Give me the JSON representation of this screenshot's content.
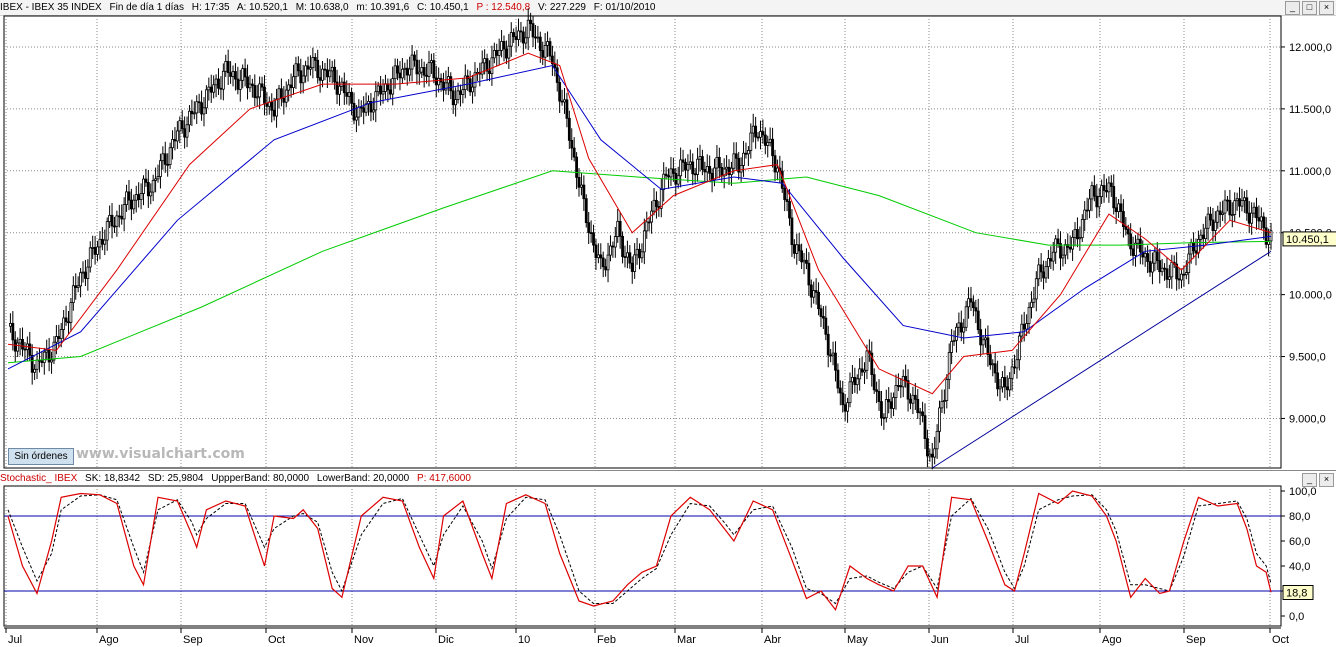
{
  "header": {
    "symbol": "IBEX - IBEX 35 INDEX",
    "period": "Fin de día 1 días",
    "time": "H: 17:35",
    "open": "A: 10.520,1",
    "high": "M: 10.638,0",
    "low": "m: 10.391,6",
    "close": "C: 10.450,1",
    "change": "P : 12.540,8",
    "volume": "V: 227.229",
    "date": "F: 01/10/2010"
  },
  "window_buttons": [
    "_",
    "□",
    "×"
  ],
  "orders_button": "Sin órdenes",
  "watermark": "www.visualchart.com",
  "sub_header": {
    "indicator": "Stochastic_ IBEX",
    "sk": "SK: 18,8342",
    "sd": "SD: 25,9804",
    "upper": "UppperBand: 80,0000",
    "lower": "LowerBand: 20,0000",
    "p": "P: 417,6000"
  },
  "colors": {
    "candle": "#000000",
    "ma_fast": "#dd0000",
    "ma_mid": "#0000cc",
    "ma_slow": "#00cc00",
    "trendline": "#000099",
    "stoch_k": "#dd0000",
    "stoch_d": "#000000",
    "bands": "#0000aa",
    "last_price_bg": "#ffffcc"
  },
  "chart_data": [
    {
      "type": "candlestick",
      "title": "IBEX - IBEX 35 INDEX",
      "x_ticks": [
        "Jul",
        "Ago",
        "Sep",
        "Oct",
        "Nov",
        "Dic",
        "10",
        "Feb",
        "Mar",
        "Abr",
        "May",
        "Jun",
        "Jul",
        "Ago",
        "Sep",
        "Oct"
      ],
      "y_ticks": [
        "9.000,0",
        "9.500,0",
        "10.000,0",
        "10.500,0",
        "11.000,0",
        "11.500,0",
        "12.000,0"
      ],
      "ylim": [
        8600,
        12250
      ],
      "last_price_label": "10.450,1",
      "close_path": [
        [
          0,
          9700
        ],
        [
          5,
          9600
        ],
        [
          12,
          9420
        ],
        [
          20,
          9600
        ],
        [
          30,
          10150
        ],
        [
          40,
          10500
        ],
        [
          50,
          10750
        ],
        [
          60,
          10900
        ],
        [
          70,
          11300
        ],
        [
          80,
          11550
        ],
        [
          90,
          11800
        ],
        [
          100,
          11700
        ],
        [
          110,
          11500
        ],
        [
          118,
          11750
        ],
        [
          125,
          11850
        ],
        [
          135,
          11750
        ],
        [
          145,
          11450
        ],
        [
          155,
          11650
        ],
        [
          165,
          11850
        ],
        [
          175,
          11800
        ],
        [
          185,
          11600
        ],
        [
          195,
          11800
        ],
        [
          205,
          12000
        ],
        [
          215,
          12150
        ],
        [
          225,
          11900
        ],
        [
          232,
          11300
        ],
        [
          238,
          10700
        ],
        [
          245,
          10200
        ],
        [
          252,
          10500
        ],
        [
          258,
          10200
        ],
        [
          265,
          10600
        ],
        [
          272,
          10950
        ],
        [
          282,
          11050
        ],
        [
          292,
          11000
        ],
        [
          302,
          11050
        ],
        [
          310,
          11350
        ],
        [
          318,
          11050
        ],
        [
          325,
          10400
        ],
        [
          330,
          10200
        ],
        [
          338,
          9700
        ],
        [
          345,
          9100
        ],
        [
          355,
          9500
        ],
        [
          362,
          9000
        ],
        [
          368,
          9300
        ],
        [
          375,
          9150
        ],
        [
          382,
          8650
        ],
        [
          390,
          9600
        ],
        [
          398,
          9950
        ],
        [
          405,
          9500
        ],
        [
          412,
          9200
        ],
        [
          418,
          9600
        ],
        [
          425,
          10100
        ],
        [
          432,
          10350
        ],
        [
          440,
          10400
        ],
        [
          448,
          10800
        ],
        [
          456,
          10850
        ],
        [
          463,
          10450
        ],
        [
          470,
          10300
        ],
        [
          478,
          10200
        ],
        [
          485,
          10150
        ],
        [
          492,
          10450
        ],
        [
          500,
          10650
        ],
        [
          508,
          10750
        ],
        [
          515,
          10650
        ],
        [
          522,
          10450
        ]
      ],
      "ma_fast_path": [
        [
          0,
          9600
        ],
        [
          20,
          9550
        ],
        [
          45,
          10200
        ],
        [
          75,
          11050
        ],
        [
          100,
          11500
        ],
        [
          130,
          11700
        ],
        [
          160,
          11700
        ],
        [
          190,
          11750
        ],
        [
          215,
          11950
        ],
        [
          228,
          11850
        ],
        [
          240,
          11100
        ],
        [
          258,
          10500
        ],
        [
          275,
          10800
        ],
        [
          300,
          11000
        ],
        [
          318,
          11050
        ],
        [
          335,
          10200
        ],
        [
          360,
          9400
        ],
        [
          382,
          9200
        ],
        [
          395,
          9500
        ],
        [
          415,
          9550
        ],
        [
          435,
          10000
        ],
        [
          455,
          10650
        ],
        [
          470,
          10450
        ],
        [
          485,
          10200
        ],
        [
          505,
          10600
        ],
        [
          522,
          10500
        ]
      ],
      "ma_mid_path": [
        [
          0,
          9400
        ],
        [
          30,
          9700
        ],
        [
          70,
          10600
        ],
        [
          110,
          11250
        ],
        [
          150,
          11550
        ],
        [
          190,
          11700
        ],
        [
          225,
          11850
        ],
        [
          245,
          11250
        ],
        [
          270,
          10850
        ],
        [
          300,
          10950
        ],
        [
          320,
          10900
        ],
        [
          345,
          10300
        ],
        [
          370,
          9750
        ],
        [
          395,
          9650
        ],
        [
          420,
          9700
        ],
        [
          445,
          10050
        ],
        [
          470,
          10350
        ],
        [
          495,
          10400
        ],
        [
          522,
          10470
        ]
      ],
      "ma_slow_path": [
        [
          0,
          9450
        ],
        [
          30,
          9500
        ],
        [
          80,
          9900
        ],
        [
          130,
          10350
        ],
        [
          180,
          10700
        ],
        [
          225,
          11000
        ],
        [
          260,
          10950
        ],
        [
          300,
          10900
        ],
        [
          330,
          10950
        ],
        [
          360,
          10800
        ],
        [
          400,
          10500
        ],
        [
          430,
          10400
        ],
        [
          460,
          10400
        ],
        [
          490,
          10420
        ],
        [
          522,
          10430
        ]
      ],
      "trendline": [
        [
          382,
          8600
        ],
        [
          522,
          10350
        ]
      ]
    },
    {
      "type": "line",
      "title": "Stochastic_ IBEX",
      "y_ticks": [
        "0,0",
        "20,0",
        "40,0",
        "60,0",
        "80,0",
        "100,0"
      ],
      "ylim": [
        -8,
        104
      ],
      "bands": [
        80,
        20
      ],
      "last_value_label": "18,8",
      "sk_path": [
        [
          0,
          80
        ],
        [
          6,
          40
        ],
        [
          12,
          18
        ],
        [
          18,
          60
        ],
        [
          22,
          95
        ],
        [
          30,
          98
        ],
        [
          38,
          97
        ],
        [
          45,
          90
        ],
        [
          52,
          40
        ],
        [
          56,
          25
        ],
        [
          62,
          95
        ],
        [
          70,
          92
        ],
        [
          76,
          65
        ],
        [
          78,
          55
        ],
        [
          82,
          85
        ],
        [
          90,
          92
        ],
        [
          98,
          88
        ],
        [
          106,
          40
        ],
        [
          110,
          80
        ],
        [
          118,
          78
        ],
        [
          122,
          85
        ],
        [
          128,
          70
        ],
        [
          134,
          22
        ],
        [
          138,
          15
        ],
        [
          146,
          80
        ],
        [
          155,
          95
        ],
        [
          163,
          92
        ],
        [
          170,
          55
        ],
        [
          176,
          30
        ],
        [
          180,
          80
        ],
        [
          188,
          92
        ],
        [
          196,
          50
        ],
        [
          200,
          30
        ],
        [
          206,
          90
        ],
        [
          214,
          97
        ],
        [
          222,
          90
        ],
        [
          228,
          50
        ],
        [
          236,
          12
        ],
        [
          242,
          8
        ],
        [
          250,
          12
        ],
        [
          256,
          25
        ],
        [
          262,
          35
        ],
        [
          268,
          40
        ],
        [
          274,
          80
        ],
        [
          282,
          95
        ],
        [
          290,
          85
        ],
        [
          296,
          70
        ],
        [
          300,
          60
        ],
        [
          308,
          92
        ],
        [
          316,
          85
        ],
        [
          324,
          45
        ],
        [
          330,
          14
        ],
        [
          336,
          20
        ],
        [
          342,
          5
        ],
        [
          348,
          40
        ],
        [
          355,
          30
        ],
        [
          360,
          25
        ],
        [
          366,
          20
        ],
        [
          372,
          40
        ],
        [
          378,
          40
        ],
        [
          384,
          15
        ],
        [
          390,
          95
        ],
        [
          398,
          93
        ],
        [
          405,
          60
        ],
        [
          412,
          25
        ],
        [
          416,
          20
        ],
        [
          420,
          50
        ],
        [
          426,
          98
        ],
        [
          434,
          90
        ],
        [
          440,
          100
        ],
        [
          448,
          96
        ],
        [
          454,
          80
        ],
        [
          458,
          60
        ],
        [
          464,
          15
        ],
        [
          470,
          30
        ],
        [
          476,
          18
        ],
        [
          480,
          20
        ],
        [
          486,
          60
        ],
        [
          492,
          95
        ],
        [
          500,
          88
        ],
        [
          508,
          90
        ],
        [
          512,
          70
        ],
        [
          516,
          40
        ],
        [
          520,
          35
        ],
        [
          522,
          19
        ]
      ],
      "sd_path": [
        [
          0,
          85
        ],
        [
          6,
          55
        ],
        [
          12,
          28
        ],
        [
          18,
          50
        ],
        [
          22,
          85
        ],
        [
          30,
          96
        ],
        [
          38,
          97
        ],
        [
          45,
          93
        ],
        [
          52,
          55
        ],
        [
          56,
          35
        ],
        [
          62,
          85
        ],
        [
          70,
          93
        ],
        [
          76,
          75
        ],
        [
          78,
          65
        ],
        [
          82,
          78
        ],
        [
          90,
          90
        ],
        [
          98,
          90
        ],
        [
          106,
          55
        ],
        [
          110,
          70
        ],
        [
          118,
          80
        ],
        [
          122,
          82
        ],
        [
          128,
          75
        ],
        [
          134,
          35
        ],
        [
          138,
          20
        ],
        [
          146,
          65
        ],
        [
          155,
          90
        ],
        [
          163,
          94
        ],
        [
          170,
          65
        ],
        [
          176,
          40
        ],
        [
          180,
          65
        ],
        [
          188,
          88
        ],
        [
          196,
          60
        ],
        [
          200,
          38
        ],
        [
          206,
          78
        ],
        [
          214,
          95
        ],
        [
          222,
          93
        ],
        [
          228,
          65
        ],
        [
          236,
          20
        ],
        [
          242,
          10
        ],
        [
          250,
          10
        ],
        [
          256,
          20
        ],
        [
          262,
          30
        ],
        [
          268,
          38
        ],
        [
          274,
          65
        ],
        [
          282,
          90
        ],
        [
          290,
          88
        ],
        [
          296,
          75
        ],
        [
          300,
          65
        ],
        [
          308,
          85
        ],
        [
          316,
          88
        ],
        [
          324,
          55
        ],
        [
          330,
          22
        ],
        [
          336,
          18
        ],
        [
          342,
          10
        ],
        [
          348,
          30
        ],
        [
          355,
          32
        ],
        [
          360,
          27
        ],
        [
          366,
          22
        ],
        [
          372,
          35
        ],
        [
          378,
          40
        ],
        [
          384,
          22
        ],
        [
          390,
          80
        ],
        [
          398,
          94
        ],
        [
          405,
          70
        ],
        [
          412,
          35
        ],
        [
          416,
          22
        ],
        [
          420,
          40
        ],
        [
          426,
          85
        ],
        [
          434,
          93
        ],
        [
          440,
          96
        ],
        [
          448,
          97
        ],
        [
          454,
          85
        ],
        [
          458,
          68
        ],
        [
          464,
          25
        ],
        [
          470,
          25
        ],
        [
          476,
          22
        ],
        [
          480,
          20
        ],
        [
          486,
          48
        ],
        [
          492,
          88
        ],
        [
          500,
          90
        ],
        [
          508,
          92
        ],
        [
          512,
          78
        ],
        [
          516,
          50
        ],
        [
          520,
          40
        ],
        [
          522,
          26
        ]
      ]
    }
  ]
}
